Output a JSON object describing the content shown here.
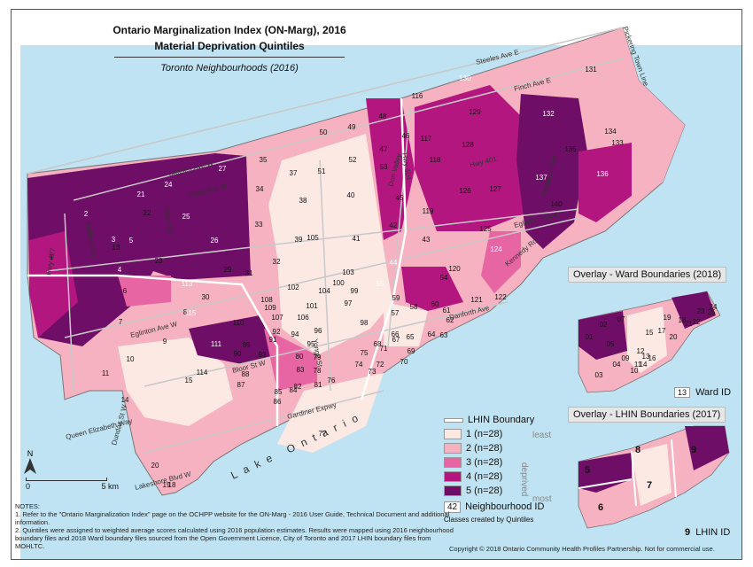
{
  "title": {
    "line1": "Ontario Marginalization Index (ON-Marg), 2016",
    "line2": "Material Deprivation Quintiles",
    "line3": "Toronto Neighbourhoods (2016)"
  },
  "colors": {
    "water": "#bfe3f2",
    "q1": "#fce9e3",
    "q2": "#f6b2c0",
    "q3": "#e765a2",
    "q4": "#b3167f",
    "q5": "#6f0e67",
    "road": "#c8c8c8",
    "lhin": "#ffffff"
  },
  "legend": {
    "lhin_boundary": "LHIN Boundary",
    "quintiles": [
      {
        "label": "1 (n=28)",
        "color": "#fce9e3"
      },
      {
        "label": "2 (n=28)",
        "color": "#f6b2c0"
      },
      {
        "label": "3 (n=28)",
        "color": "#e765a2"
      },
      {
        "label": "4 (n=28)",
        "color": "#b3167f"
      },
      {
        "label": "5 (n=28)",
        "color": "#6f0e67"
      }
    ],
    "least": "least",
    "deprived": "deprived",
    "most": "most",
    "neighbourhood_id_box": "42",
    "neighbourhood_id_label": "Neighbourhood ID",
    "classes_note": "Classes created by Quintiles"
  },
  "roads": {
    "steeles_e": "Steeles Ave E",
    "steeles_w": "Steeles Ave W",
    "finch_e": "Finch Ave E",
    "finch_w": "Finch Ave W",
    "hwy_401": "Hwy 401",
    "hwy_427": "Hwy 427",
    "hwy_400": "Hwy 400",
    "hwy_404": "Hwy 404",
    "don_valley": "Don Valley",
    "eglinton_e": "Eglinton Ave E",
    "eglinton_w": "Eglinton Ave W",
    "bloor": "Bloor St W",
    "gardiner": "Gardiner Expwy",
    "dundas": "Dundas St W",
    "qew": "Queen Elizabeth Way",
    "lakeshore": "Lakeshore Blvd W",
    "yonge": "Yonge St",
    "danforth": "Danforth Ave",
    "markham": "Markham Rd",
    "kennedy": "Kennedy Rd",
    "pickering": "Pickering Town Line",
    "kipling": "Kipling Ave",
    "lake_ontario": "Lake Ontario"
  },
  "neighbourhood_labels": [
    "1",
    "2",
    "3",
    "4",
    "5",
    "6",
    "7",
    "8",
    "9",
    "10",
    "11",
    "12",
    "13",
    "14",
    "15",
    "16",
    "17",
    "18",
    "19",
    "20",
    "21",
    "22",
    "23",
    "24",
    "25",
    "26",
    "27",
    "28",
    "29",
    "30",
    "31",
    "32",
    "33",
    "34",
    "35",
    "36",
    "37",
    "38",
    "39",
    "40",
    "41",
    "42",
    "43",
    "44",
    "45",
    "46",
    "47",
    "48",
    "49",
    "50",
    "51",
    "52",
    "53",
    "54",
    "55",
    "56",
    "57",
    "58",
    "59",
    "60",
    "61",
    "62",
    "63",
    "64",
    "65",
    "66",
    "67",
    "68",
    "69",
    "70",
    "71",
    "72",
    "73",
    "74",
    "75",
    "76",
    "77",
    "78",
    "79",
    "80",
    "81",
    "82",
    "83",
    "84",
    "85",
    "86",
    "87",
    "88",
    "89",
    "90",
    "91",
    "92",
    "93",
    "94",
    "95",
    "96",
    "97",
    "98",
    "99",
    "100",
    "101",
    "102",
    "103",
    "104",
    "105",
    "106",
    "107",
    "108",
    "109",
    "110",
    "111",
    "112",
    "113",
    "114",
    "115",
    "116",
    "117",
    "118",
    "119",
    "120",
    "121",
    "122",
    "123",
    "124",
    "125",
    "126",
    "127",
    "128",
    "129",
    "130",
    "131",
    "132",
    "133",
    "134",
    "135",
    "136",
    "137",
    "138",
    "139",
    "140"
  ],
  "overlay_ward": {
    "label": "Overlay - Ward Boundaries (2018)",
    "ids": [
      "01",
      "02",
      "03",
      "04",
      "05",
      "07",
      "09",
      "10",
      "11",
      "12",
      "13",
      "14",
      "15",
      "16",
      "17",
      "18",
      "19",
      "20",
      "21",
      "22",
      "23",
      "24",
      "25"
    ],
    "legend_box": "13",
    "legend_label": "Ward ID"
  },
  "overlay_lhin": {
    "label": "Overlay - LHIN Boundaries (2017)",
    "ids": [
      "5",
      "6",
      "7",
      "8",
      "9"
    ],
    "legend_num": "9",
    "legend_label": "LHIN ID"
  },
  "north_arrow": "N",
  "scale": {
    "zero": "0",
    "five": "5",
    "unit": "km"
  },
  "notes": {
    "heading": "NOTES:",
    "n1": "1. Refer to the \"Ontario Marginalization Index\" page on the OCHPP website for the ON-Marg - 2016 User Guide, Technical Document and additional information.",
    "n2": "2. Quintiles were assigned to weighted average scores calculated using 2016 population estimates. Results were mapped using 2016 neighbourhood boundary files and 2018 Ward boundary files sourced from the Open Government Licence, City of Toronto and 2017 LHIN boundary files from MOHLTC."
  },
  "copyright": "Copyright © 2018 Ontario Community Health Profiles Partnership. Not for commercial use."
}
